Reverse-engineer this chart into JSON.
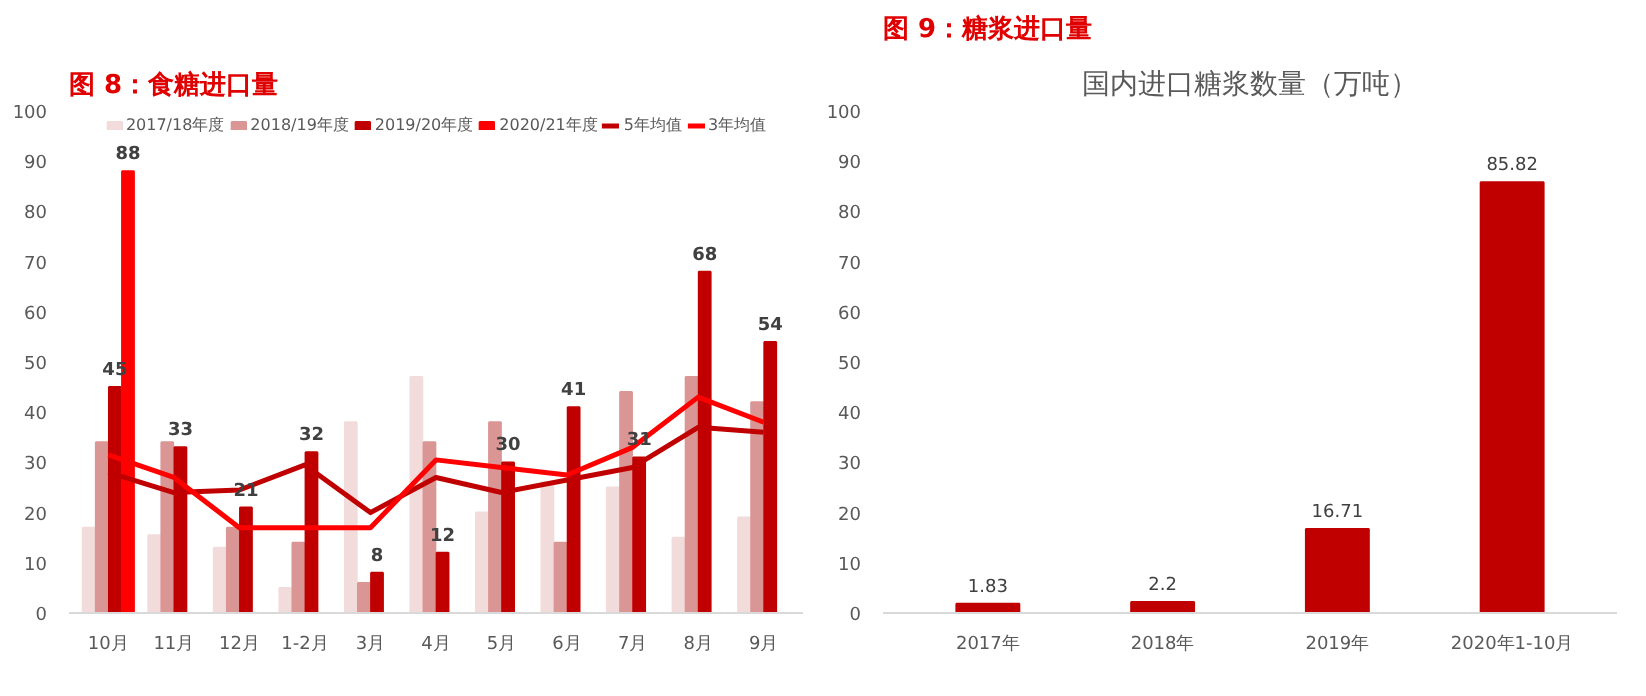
{
  "chart_data": [
    {
      "type": "bar",
      "title": "图 8：食糖进口量",
      "categories": [
        "10月",
        "11月",
        "12月",
        "1-2月",
        "3月",
        "4月",
        "5月",
        "6月",
        "7月",
        "8月",
        "9月"
      ],
      "ylim": [
        0,
        100
      ],
      "yticks": [
        0,
        10,
        20,
        30,
        40,
        50,
        60,
        70,
        80,
        90,
        100
      ],
      "legend": "top",
      "series": [
        {
          "name": "2017/18年度",
          "color": "#f2dcdb",
          "values": [
            17,
            15.5,
            13,
            5,
            38,
            47,
            20,
            26,
            25,
            15,
            19
          ]
        },
        {
          "name": "2018/19年度",
          "color": "#da9694",
          "values": [
            34,
            34,
            17,
            14,
            6,
            34,
            38,
            14,
            44,
            47,
            42
          ]
        },
        {
          "name": "2019/20年度",
          "color": "#c00000",
          "values": [
            45,
            33,
            21,
            32,
            8,
            12,
            30,
            41,
            31,
            68,
            54
          ],
          "value_labels": [
            "45",
            "33",
            "21",
            "32",
            "8",
            "12",
            "30",
            "41",
            "31",
            "68",
            "54"
          ]
        },
        {
          "name": "2020/21年度",
          "color": "#ff0000",
          "values": [
            88,
            null,
            null,
            null,
            null,
            null,
            null,
            null,
            null,
            null,
            null
          ],
          "value_labels": [
            "88",
            null,
            null,
            null,
            null,
            null,
            null,
            null,
            null,
            null,
            null
          ]
        },
        {
          "name": "5年均值",
          "type": "line",
          "color": "#c00000",
          "values": [
            28,
            24,
            24.5,
            29.5,
            20,
            27,
            24,
            26.5,
            29,
            37,
            36
          ]
        },
        {
          "name": "3年均值",
          "type": "line",
          "color": "#ff0000",
          "values": [
            31.5,
            27,
            17,
            17,
            17,
            30.5,
            29,
            27.5,
            33,
            43,
            38
          ]
        }
      ]
    },
    {
      "type": "bar",
      "title": "图 9：糖浆进口量",
      "subtitle": "国内进口糖浆数量（万吨）",
      "categories": [
        "2017年",
        "2018年",
        "2019年",
        "2020年1-10月"
      ],
      "ylim": [
        0,
        100
      ],
      "yticks": [
        0,
        10,
        20,
        30,
        40,
        50,
        60,
        70,
        80,
        90,
        100
      ],
      "data_labels": true,
      "series": [
        {
          "color": "#c00000",
          "values": [
            1.83,
            2.2,
            16.71,
            85.82
          ]
        }
      ]
    }
  ]
}
